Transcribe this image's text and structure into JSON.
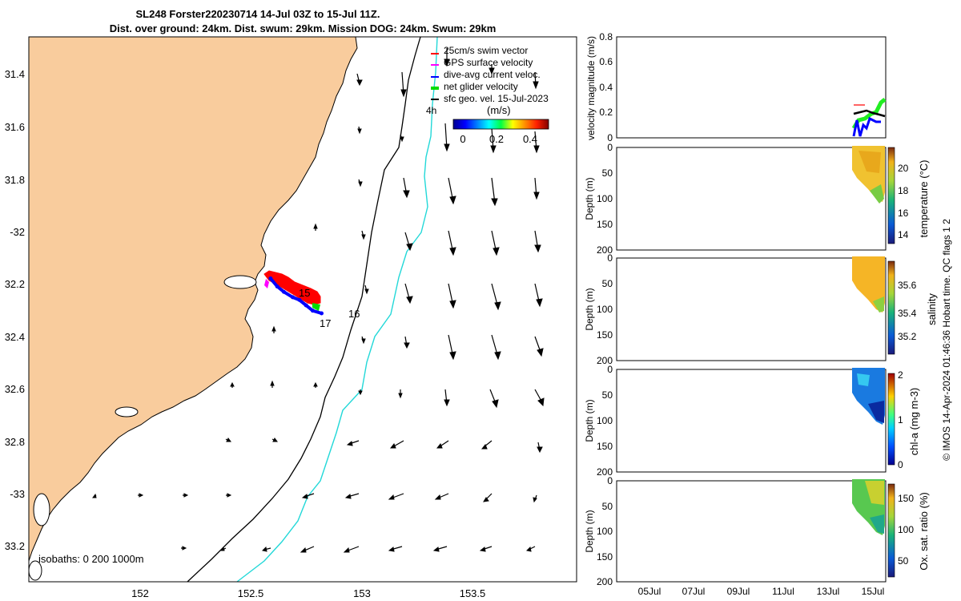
{
  "header": {
    "line1": "SL248 Forster220230714 14-Jul 03Z to 15-Jul 11Z.",
    "line2": "Dist. over ground: 24km. Dist. swum: 29km. Mission DOG: 24km. Swum: 29km"
  },
  "map": {
    "lon_ticks": [
      "152",
      "152.5",
      "153",
      "153.5"
    ],
    "lat_ticks": [
      "31.4",
      "31.6",
      "31.8",
      "-32",
      "32.2",
      "32.4",
      "32.6",
      "32.8",
      "-33",
      "33.2"
    ],
    "legend": [
      {
        "label": "25cm/s swim vector",
        "color": "#ff0000"
      },
      {
        "label": "GPS surface velocity",
        "color": "#ff00ff"
      },
      {
        "label": "dive-avg current veloc.",
        "color": "#0000ff"
      },
      {
        "label": "net glider velocity",
        "color": "#00dd00"
      },
      {
        "label": "sfc geo. vel. 15-Jul-2023",
        "color": "#000000"
      }
    ],
    "legend_hours": "4h",
    "colorbar_unit": "(m/s)",
    "colorbar_ticks": [
      "0",
      "0.2",
      "0.4"
    ],
    "track_day_labels": [
      "15",
      "16",
      "17"
    ],
    "isobaths_label": "isobaths: 0   200  1000m",
    "land_color": "#f9cc9d"
  },
  "side": {
    "velocity_ylabel": "velocity magnitude (m/s)",
    "velocity_ticks": [
      "0.8",
      "0.6",
      "0.4",
      "0.2",
      "0"
    ],
    "depth_label": "Depth (m)",
    "depth_ticks": [
      "0",
      "50",
      "100",
      "150",
      "200"
    ],
    "time_ticks": [
      "05Jul",
      "07Jul",
      "09Jul",
      "11Jul",
      "13Jul",
      "15Jul"
    ],
    "panels": [
      {
        "label": "temperature (°C)",
        "cbar_ticks": [
          "20",
          "18",
          "16",
          "14"
        ]
      },
      {
        "label": "salinity",
        "cbar_ticks": [
          "35.6",
          "35.4",
          "35.2"
        ]
      },
      {
        "label": "chl-a (mg m-3)",
        "cbar_ticks": [
          "2",
          "1",
          "0"
        ]
      },
      {
        "label": "Ox. sat. ratio (%)",
        "cbar_ticks": [
          "150",
          "100",
          "50"
        ]
      }
    ],
    "footer": "© IMOS 14-Apr-2024 01:46:36 Hobart time. QC flags 1  2"
  },
  "chart_data": {
    "type": "scatter",
    "title": "SL248 Forster220230714 14-Jul 03Z to 15-Jul 11Z.",
    "xlabel": "",
    "ylabel": "",
    "xlim": [
      151.5,
      153.97
    ],
    "ylim": [
      -33.28,
      -31.25
    ],
    "series": [
      {
        "name": "dive-avg current veloc.",
        "x": [
          152.59,
          152.62,
          152.65,
          152.69,
          152.72,
          152.75,
          152.78,
          152.82
        ],
        "y": [
          -32.15,
          -32.18,
          -32.2,
          -32.22,
          -32.23,
          -32.25,
          -32.27,
          -32.28
        ]
      }
    ],
    "annotations": [
      "15",
      "16",
      "17"
    ]
  }
}
